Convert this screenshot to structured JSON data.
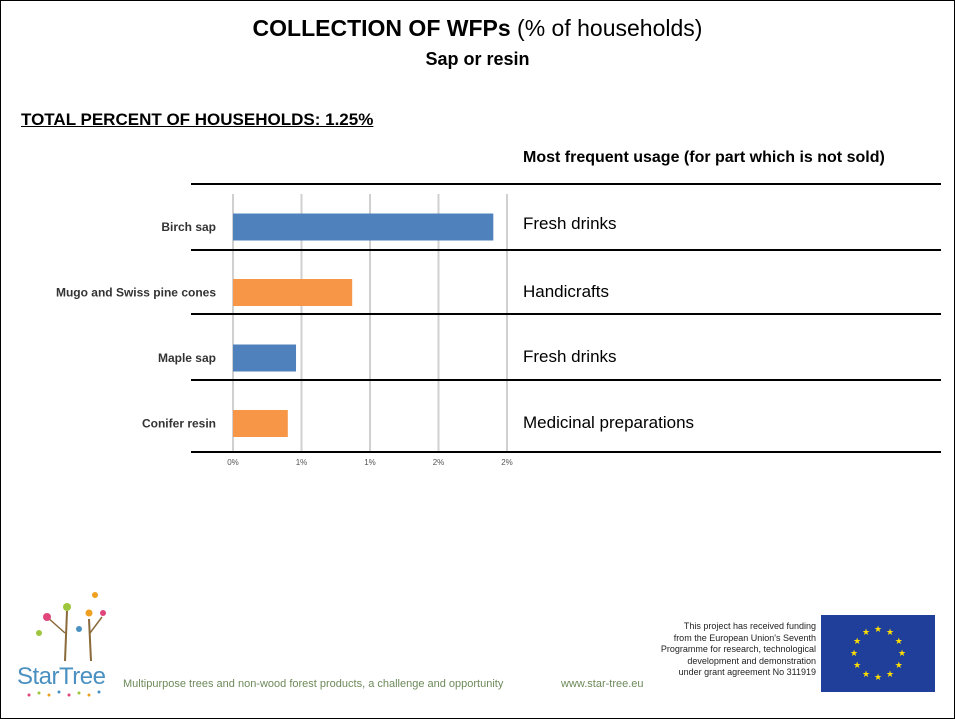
{
  "header": {
    "title_bold": "COLLECTION OF WFPs",
    "title_rest": " (% of households)",
    "subtitle": "Sap or resin"
  },
  "total_label": "TOTAL PERCENT OF HOUSEHOLDS: 1.25%",
  "usage_header": "Most frequent usage (for part which is not sold)",
  "usages": [
    "Fresh drinks",
    "Handicrafts",
    "Fresh drinks",
    "Medicinal preparations"
  ],
  "chart_data": {
    "type": "bar",
    "orientation": "horizontal",
    "categories": [
      "Birch sap",
      "Mugo and Swiss pine cones",
      "Maple sap",
      "Conifer resin"
    ],
    "values": [
      1.9,
      0.87,
      0.46,
      0.4
    ],
    "bar_colors": [
      "#4f81bd",
      "#f79646",
      "#4f81bd",
      "#f79646"
    ],
    "xlim": [
      0,
      2
    ],
    "x_ticks": [
      0,
      0.5,
      1,
      1.5,
      2
    ],
    "x_tick_labels": [
      "0%",
      "1%",
      "1%",
      "2%",
      "2%"
    ],
    "grid": true,
    "title": "",
    "xlabel": "",
    "ylabel": ""
  },
  "footer": {
    "tagline": "Multipurpose trees and non-wood forest products, a challenge and opportunity",
    "url": "www.star-tree.eu",
    "funding_lines": [
      "This project has received funding",
      "from the European Union's Seventh",
      "Programme for research, technological",
      "development and demonstration",
      "under grant agreement No 311919"
    ],
    "logo_text": "StarTree"
  },
  "colors": {
    "blue": "#4f81bd",
    "orange": "#f79646",
    "eu_blue": "#1f3f9b",
    "eu_star": "#ffdd00"
  }
}
